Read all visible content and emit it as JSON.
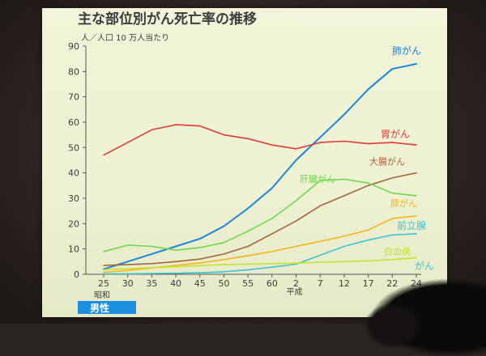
{
  "page": {
    "title": "主な部位別がん死亡率の推移",
    "sex_label": "男性"
  },
  "chart_data": {
    "type": "line",
    "title": "主な部位別がん死亡率の推移",
    "ylabel": "人／人口 10 万人当たり",
    "xlabel": "",
    "ylim": [
      0,
      90
    ],
    "yticks": [
      "0",
      "10",
      "20",
      "30",
      "40",
      "50",
      "60",
      "70",
      "80",
      "90"
    ],
    "x": [
      "25",
      "30",
      "35",
      "40",
      "45",
      "50",
      "55",
      "60",
      "2",
      "7",
      "12",
      "17",
      "22",
      "24"
    ],
    "era_labels": [
      {
        "text": "昭和",
        "at": "25"
      },
      {
        "text": "平成",
        "at": "2"
      }
    ],
    "grid": false,
    "series": [
      {
        "name": "肺がん",
        "color": "#1a86dd",
        "width": 2,
        "values": [
          2,
          5,
          8,
          11,
          14,
          19,
          26,
          34,
          45,
          54,
          63,
          73,
          81,
          83
        ]
      },
      {
        "name": "胃がん",
        "color": "#e23a34",
        "width": 1.6,
        "values": [
          47,
          52,
          57,
          59,
          58.5,
          55,
          53.5,
          51,
          49.5,
          52,
          52.5,
          51.5,
          52,
          51
        ]
      },
      {
        "name": "大腸がん",
        "color": "#a0683a",
        "width": 1.6,
        "values": [
          3.5,
          3.8,
          4.2,
          5,
          6,
          8,
          11,
          16,
          21,
          27,
          31,
          35,
          38,
          40
        ]
      },
      {
        "name": "肝臓がん",
        "color": "#6ed84e",
        "width": 1.6,
        "values": [
          9,
          11.5,
          11,
          9.5,
          10.5,
          12.5,
          17,
          22,
          29,
          37,
          37.5,
          36,
          32,
          31
        ]
      },
      {
        "name": "膵がん",
        "color": "#f2b818",
        "width": 1.6,
        "values": [
          0.8,
          1.5,
          2.5,
          3.5,
          4.5,
          5.8,
          7.3,
          9,
          11,
          13,
          15,
          17.5,
          22,
          23
        ]
      },
      {
        "name": "前立腺",
        "color": "#3ec3d2",
        "width": 1.6,
        "values": [
          0.2,
          0.2,
          0.3,
          0.4,
          0.6,
          1,
          1.8,
          2.8,
          4,
          7.5,
          11,
          13.5,
          15.5,
          16
        ]
      },
      {
        "name": "白血病",
        "color": "#c6e22e",
        "width": 1.6,
        "values": [
          1.8,
          2.2,
          2.6,
          3,
          3.4,
          3.8,
          4,
          4.2,
          4.4,
          4.8,
          5,
          5.3,
          5.8,
          6.5
        ]
      }
    ],
    "combined_label": "がん",
    "legend": "inline-right"
  }
}
